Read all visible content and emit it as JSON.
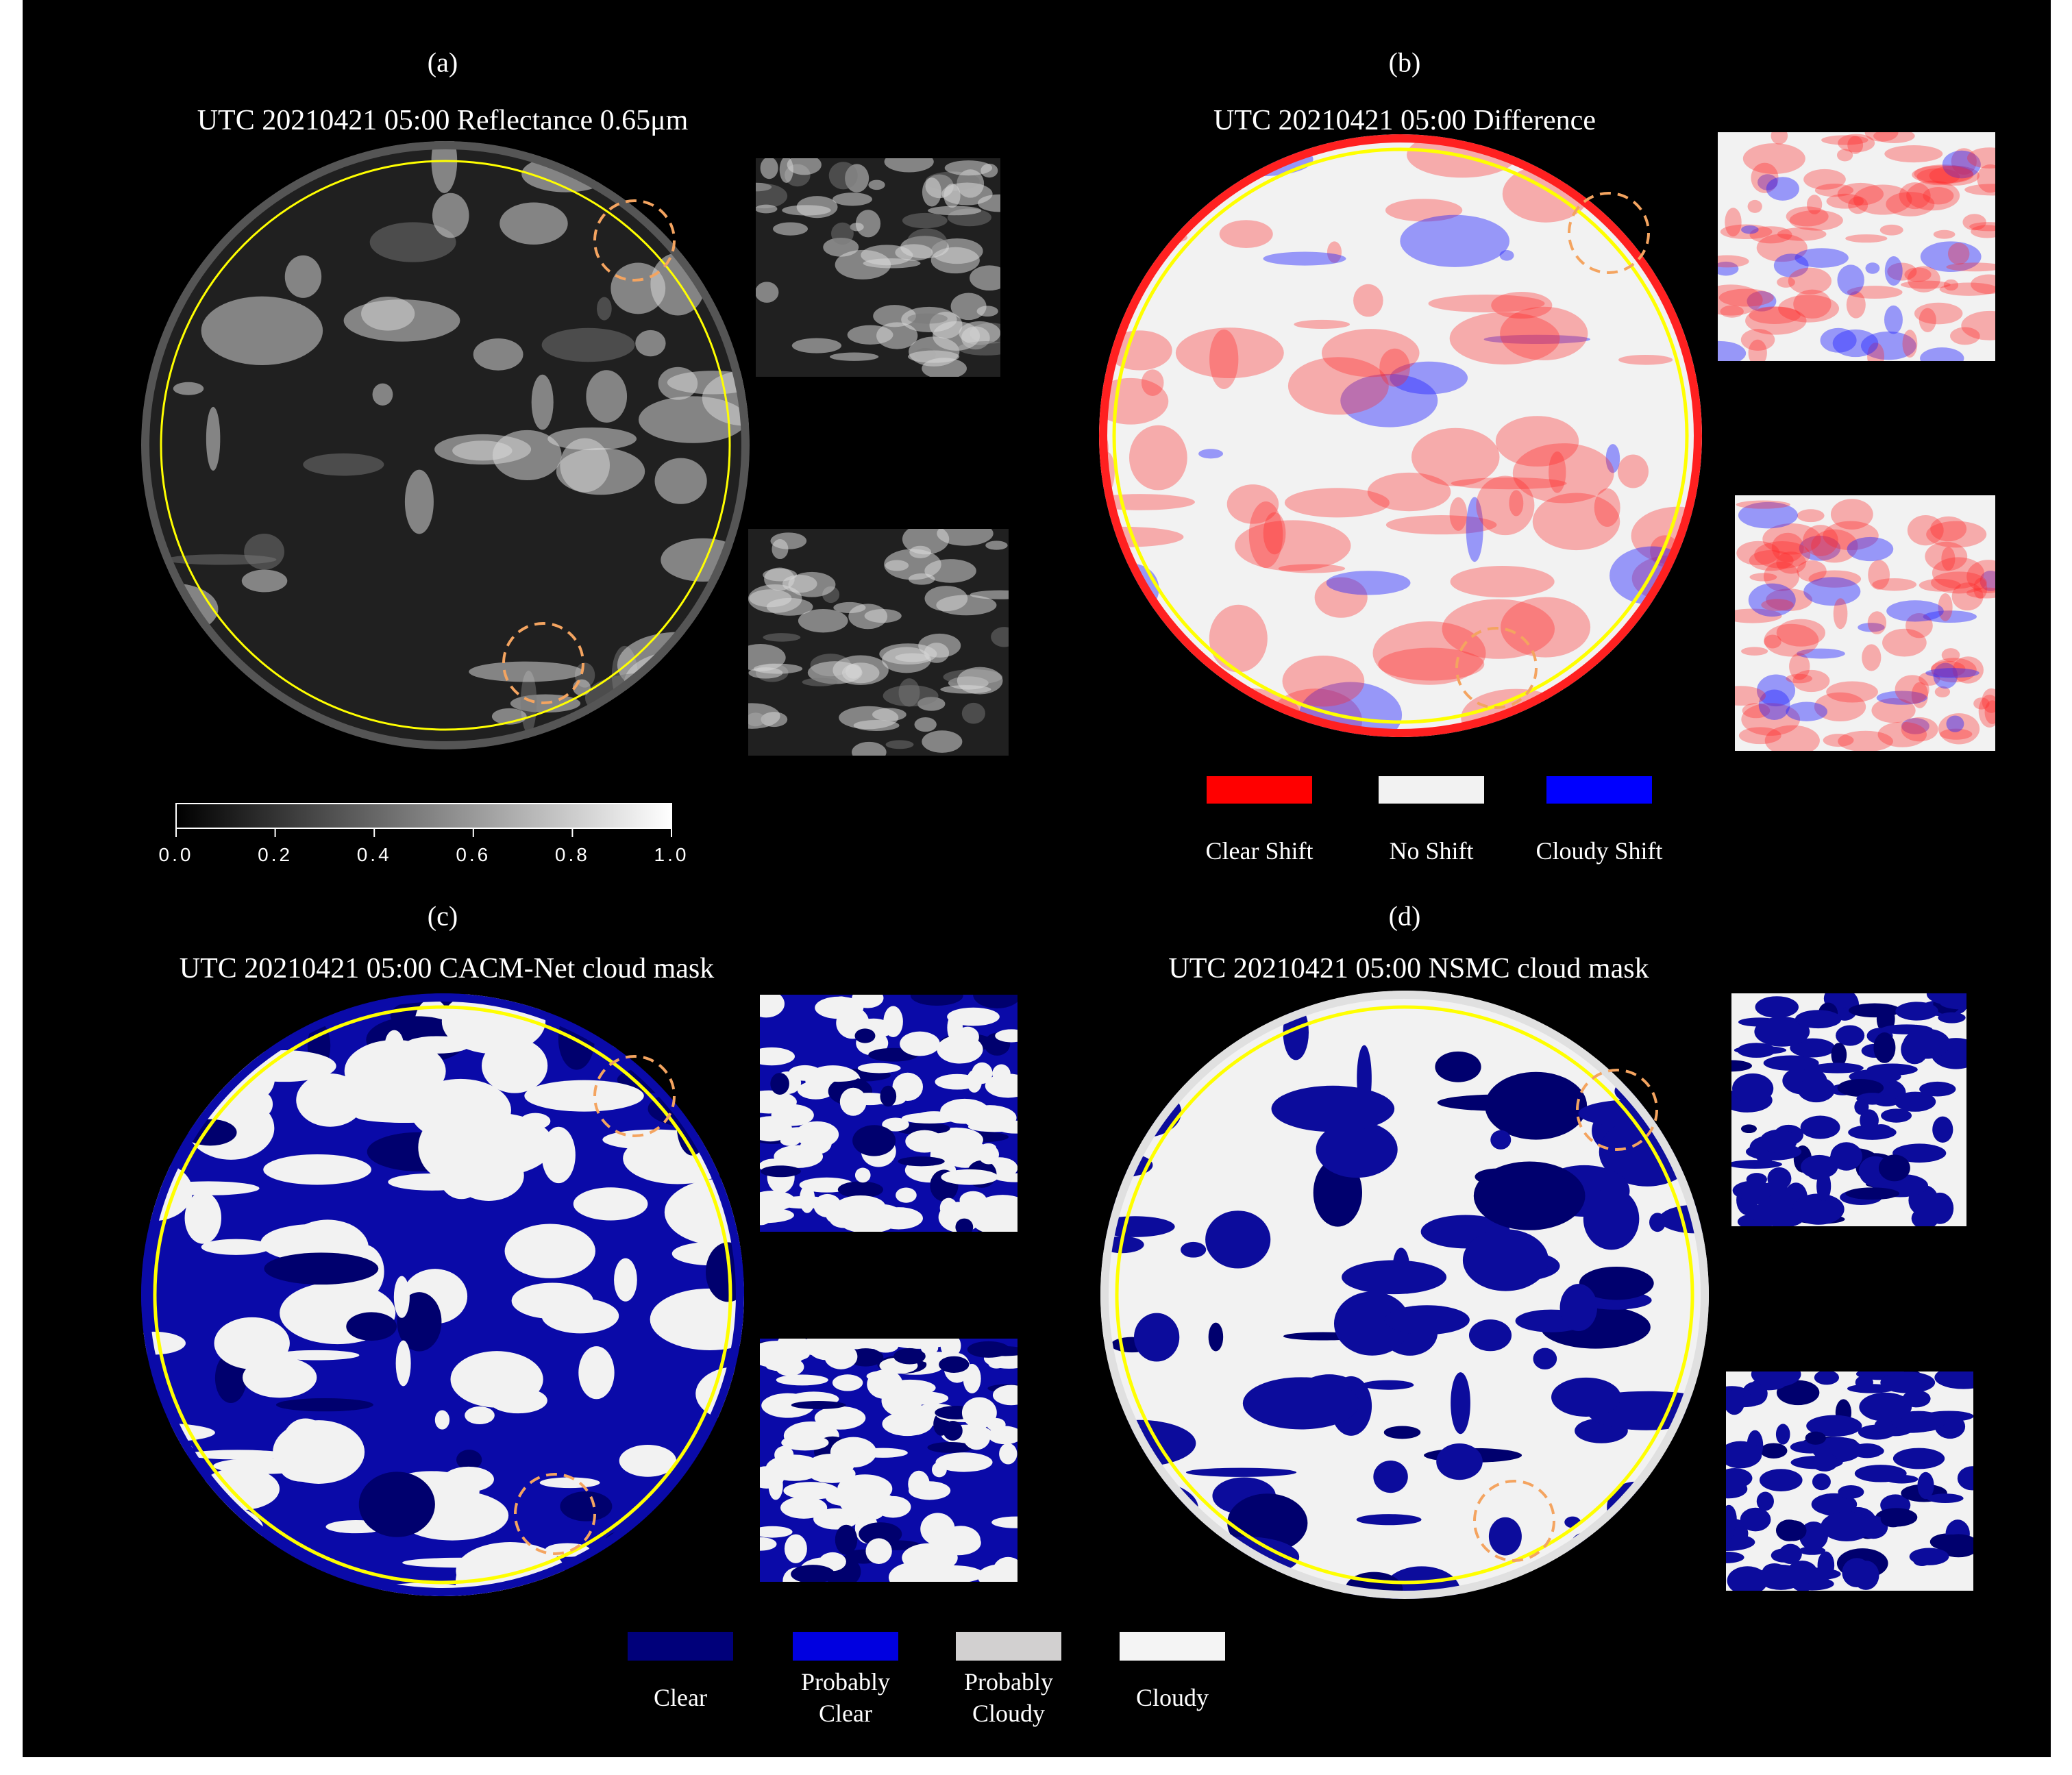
{
  "panels": [
    {
      "label": "(a)",
      "title": "UTC 20210421 05:00 Reflectance 0.65μm"
    },
    {
      "label": "(b)",
      "title": "UTC 20210421 05:00 Difference"
    },
    {
      "label": "(c)",
      "title": "UTC 20210421 05:00 CACM-Net cloud mask"
    },
    {
      "label": "(d)",
      "title": "UTC 20210421 05:00 NSMC cloud mask"
    }
  ],
  "colorbar": {
    "lim": [
      0,
      1
    ],
    "ticks": [
      {
        "value": 0,
        "label": "0.0"
      },
      {
        "value": 0.2,
        "label": "0.2"
      },
      {
        "value": 0.4,
        "label": "0.4"
      },
      {
        "value": 0.6,
        "label": "0.6"
      },
      {
        "value": 0.8,
        "label": "0.8"
      },
      {
        "value": 1,
        "label": "1.0"
      }
    ]
  },
  "difference_legend": [
    {
      "name": "Clear Shift",
      "color": "#ff0000"
    },
    {
      "name": "No Shift",
      "color": "#f2f2f2"
    },
    {
      "name": "Cloudy Shift",
      "color": "#0000ff"
    }
  ],
  "cloud_mask_legend": [
    {
      "name": "Clear",
      "color": "#00007a"
    },
    {
      "name": "Probably Clear",
      "color": "#0000e0"
    },
    {
      "name": "Probably Cloudy",
      "color": "#d2d0d0"
    },
    {
      "name": "Cloudy",
      "color": "#f4f4f4"
    }
  ]
}
